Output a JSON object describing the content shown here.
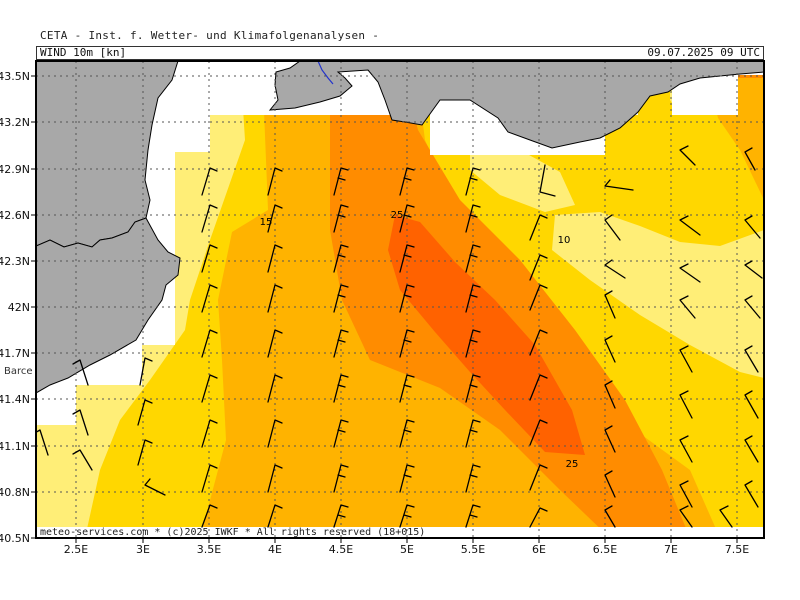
{
  "header": {
    "title": "CETA - Inst. f. Wetter- und Klimafolgenanalysen -",
    "field_label": "WIND 10m [kn]",
    "valid_time": "09.07.2025 09 UTC"
  },
  "footer": {
    "credit": "meteo-services.com * (c)2025 IWKF * All rights reserved (18+015)"
  },
  "map": {
    "lon_range": [
      2.2,
      7.7
    ],
    "lat_range": [
      40.5,
      43.6
    ],
    "lon_ticks": [
      {
        "value": 2.5,
        "label": "2.5E"
      },
      {
        "value": 3.0,
        "label": "3E"
      },
      {
        "value": 3.5,
        "label": "3.5E"
      },
      {
        "value": 4.0,
        "label": "4E"
      },
      {
        "value": 4.5,
        "label": "4.5E"
      },
      {
        "value": 5.0,
        "label": "5E"
      },
      {
        "value": 5.5,
        "label": "5.5E"
      },
      {
        "value": 6.0,
        "label": "6E"
      },
      {
        "value": 6.5,
        "label": "6.5E"
      },
      {
        "value": 7.0,
        "label": "7E"
      },
      {
        "value": 7.5,
        "label": "7.5E"
      }
    ],
    "lat_ticks": [
      {
        "value": 40.5,
        "label": "40.5N"
      },
      {
        "value": 40.8,
        "label": "40.8N"
      },
      {
        "value": 41.1,
        "label": "41.1N"
      },
      {
        "value": 41.4,
        "label": "41.4N"
      },
      {
        "value": 41.7,
        "label": "41.7N"
      },
      {
        "value": 42.0,
        "label": "42N"
      },
      {
        "value": 42.3,
        "label": "42.3N"
      },
      {
        "value": 42.6,
        "label": "42.6N"
      },
      {
        "value": 42.9,
        "label": "42.9N"
      },
      {
        "value": 43.2,
        "label": "43.2N"
      },
      {
        "value": 43.5,
        "label": "43.5N"
      }
    ],
    "contour_labels": [
      {
        "text": "15",
        "lon": 3.95,
        "lat": 42.55
      },
      {
        "text": "25",
        "lon": 4.94,
        "lat": 42.6
      },
      {
        "text": "10",
        "lon": 6.18,
        "lat": 42.44
      },
      {
        "text": "25",
        "lon": 6.25,
        "lat": 40.98
      }
    ],
    "place_labels": [
      {
        "text": "Barce",
        "lon": 2.2,
        "lat": 41.6
      }
    ],
    "colors": {
      "land": "#a8a8a8",
      "sea_nodata": "#ffffff",
      "band_5_10": "#ffee77",
      "band_10_15": "#ffd700",
      "band_15_20": "#ffb300",
      "band_20_25": "#ff8c00",
      "band_25_30": "#ff6200",
      "grid": "#555555"
    }
  }
}
